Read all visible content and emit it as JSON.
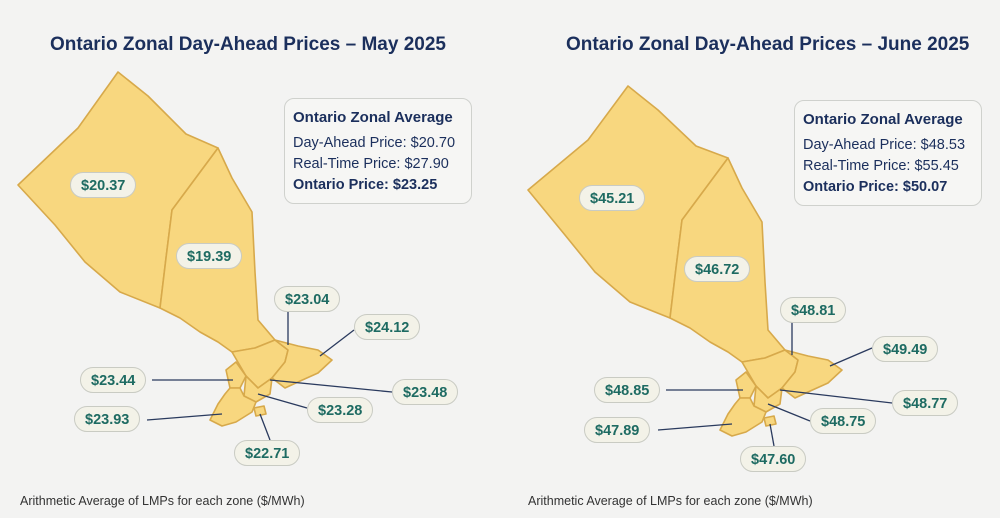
{
  "maps": [
    {
      "title": "Ontario Zonal Day-Ahead Prices – May 2025",
      "averages": {
        "title": "Ontario Zonal Average",
        "day_ahead_label": "Day-Ahead Price:",
        "day_ahead_value": "$20.70",
        "real_time_label": "Real-Time Price:",
        "real_time_value": "$27.90",
        "ontario_label": "Ontario Price:",
        "ontario_value": "$23.25"
      },
      "zones": {
        "northwest": "$20.37",
        "northeast": "$19.39",
        "essa": "$23.04",
        "east": "$24.12",
        "bruce": "$23.44",
        "ottawa": "$23.48",
        "southwest": "$23.93",
        "toronto": "$23.28",
        "niagara": "$22.71"
      },
      "caption": "Arithmetic Average of LMPs for each zone ($/MWh)"
    },
    {
      "title": "Ontario Zonal Day-Ahead Prices – June 2025",
      "averages": {
        "title": "Ontario Zonal Average",
        "day_ahead_label": "Day-Ahead Price:",
        "day_ahead_value": "$48.53",
        "real_time_label": "Real-Time Price:",
        "real_time_value": "$55.45",
        "ontario_label": "Ontario Price:",
        "ontario_value": "$50.07"
      },
      "zones": {
        "northwest": "$45.21",
        "northeast": "$46.72",
        "essa": "$48.81",
        "east": "$49.49",
        "bruce": "$48.85",
        "ottawa": "$48.77",
        "southwest": "$47.89",
        "toronto": "$48.75",
        "niagara": "$47.60"
      },
      "caption": "Arithmetic Average of LMPs for each zone ($/MWh)"
    }
  ],
  "colors": {
    "zone_fill": "#f8d77f",
    "zone_border": "#d7a94b",
    "title": "#1b2f5c",
    "price_text": "#1e6b62"
  }
}
